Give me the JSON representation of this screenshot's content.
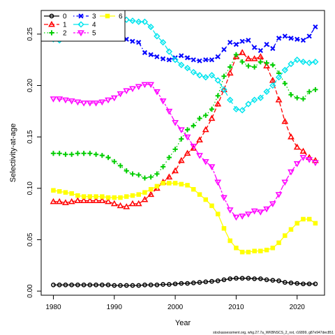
{
  "chart_data": {
    "type": "line",
    "title": "",
    "xlabel": "Year",
    "ylabel": "Selectivity-at-age",
    "xlim": [
      1978,
      2024.5
    ],
    "ylim": [
      -0.004,
      0.273
    ],
    "xticks": [
      1980,
      1990,
      2000,
      2010,
      2020
    ],
    "yticks": [
      0.0,
      0.05,
      0.1,
      0.15,
      0.2,
      0.25
    ],
    "ytick_labels": [
      "0.00",
      "0.05",
      "0.10",
      "0.15",
      "0.20",
      "0.25"
    ],
    "grid": false,
    "legend_position": "top-left",
    "x": [
      1980,
      1981,
      1982,
      1983,
      1984,
      1985,
      1986,
      1987,
      1988,
      1989,
      1990,
      1991,
      1992,
      1993,
      1994,
      1995,
      1996,
      1997,
      1998,
      1999,
      2000,
      2001,
      2002,
      2003,
      2004,
      2005,
      2006,
      2007,
      2008,
      2009,
      2010,
      2011,
      2012,
      2013,
      2014,
      2015,
      2016,
      2017,
      2018,
      2019,
      2020,
      2021,
      2022,
      2023
    ],
    "series": [
      {
        "name": "0",
        "color": "#000000",
        "marker": "circle",
        "line": "solid",
        "values": [
          0.006,
          0.006,
          0.006,
          0.006,
          0.006,
          0.006,
          0.006,
          0.006,
          0.006,
          0.006,
          0.0055,
          0.0055,
          0.0055,
          0.0055,
          0.0055,
          0.006,
          0.006,
          0.006,
          0.0065,
          0.0065,
          0.007,
          0.0075,
          0.0075,
          0.008,
          0.0085,
          0.009,
          0.0095,
          0.01,
          0.011,
          0.012,
          0.0125,
          0.0125,
          0.0125,
          0.012,
          0.012,
          0.011,
          0.0105,
          0.01,
          0.0085,
          0.008,
          0.0075,
          0.007,
          0.007,
          0.007
        ]
      },
      {
        "name": "1",
        "color": "#ff0000",
        "marker": "triangle-up",
        "line": "dash",
        "values": [
          0.087,
          0.087,
          0.086,
          0.087,
          0.088,
          0.088,
          0.088,
          0.088,
          0.088,
          0.087,
          0.085,
          0.083,
          0.082,
          0.085,
          0.085,
          0.089,
          0.094,
          0.1,
          0.106,
          0.111,
          0.117,
          0.127,
          0.134,
          0.139,
          0.147,
          0.157,
          0.168,
          0.182,
          0.196,
          0.212,
          0.228,
          0.232,
          0.226,
          0.226,
          0.228,
          0.219,
          0.205,
          0.186,
          0.165,
          0.15,
          0.14,
          0.136,
          0.13,
          0.127
        ]
      },
      {
        "name": "2",
        "color": "#00cd00",
        "marker": "plus",
        "line": "dot",
        "values": [
          0.134,
          0.134,
          0.133,
          0.133,
          0.134,
          0.134,
          0.134,
          0.133,
          0.132,
          0.13,
          0.126,
          0.122,
          0.117,
          0.114,
          0.113,
          0.11,
          0.111,
          0.114,
          0.121,
          0.13,
          0.138,
          0.148,
          0.157,
          0.161,
          0.168,
          0.171,
          0.177,
          0.19,
          0.209,
          0.218,
          0.23,
          0.223,
          0.219,
          0.218,
          0.223,
          0.222,
          0.22,
          0.212,
          0.202,
          0.191,
          0.188,
          0.187,
          0.194,
          0.196
        ]
      },
      {
        "name": "3",
        "color": "#0000ff",
        "marker": "x",
        "line": "dashdot",
        "values": [
          0.26,
          0.258,
          0.257,
          0.255,
          0.254,
          0.254,
          0.253,
          0.252,
          0.251,
          0.25,
          0.248,
          0.247,
          0.245,
          0.243,
          0.242,
          0.232,
          0.23,
          0.228,
          0.226,
          0.225,
          0.227,
          0.229,
          0.227,
          0.225,
          0.224,
          0.225,
          0.225,
          0.228,
          0.235,
          0.242,
          0.24,
          0.243,
          0.244,
          0.237,
          0.234,
          0.24,
          0.236,
          0.246,
          0.248,
          0.246,
          0.245,
          0.244,
          0.248,
          0.257
        ]
      },
      {
        "name": "4",
        "color": "#00e5ee",
        "marker": "diamond",
        "line": "longdash",
        "values": [
          0.245,
          0.244,
          0.246,
          0.248,
          0.251,
          0.254,
          0.256,
          0.258,
          0.259,
          0.261,
          0.263,
          0.264,
          0.264,
          0.263,
          0.262,
          0.262,
          0.257,
          0.248,
          0.242,
          0.233,
          0.225,
          0.22,
          0.217,
          0.213,
          0.21,
          0.208,
          0.21,
          0.205,
          0.196,
          0.186,
          0.177,
          0.176,
          0.182,
          0.186,
          0.188,
          0.194,
          0.2,
          0.208,
          0.215,
          0.221,
          0.225,
          0.223,
          0.222,
          0.223
        ]
      },
      {
        "name": "5",
        "color": "#ff00ff",
        "marker": "triangle-down",
        "line": "twodash",
        "values": [
          0.187,
          0.187,
          0.186,
          0.185,
          0.184,
          0.183,
          0.183,
          0.183,
          0.184,
          0.186,
          0.188,
          0.192,
          0.195,
          0.197,
          0.199,
          0.201,
          0.201,
          0.194,
          0.185,
          0.175,
          0.164,
          0.157,
          0.15,
          0.141,
          0.132,
          0.126,
          0.121,
          0.106,
          0.091,
          0.079,
          0.072,
          0.073,
          0.075,
          0.078,
          0.077,
          0.08,
          0.085,
          0.094,
          0.106,
          0.116,
          0.124,
          0.13,
          0.128,
          0.125
        ]
      },
      {
        "name": "6",
        "color": "#ffff00",
        "marker": "square",
        "line": "solid",
        "values": [
          0.098,
          0.097,
          0.096,
          0.095,
          0.093,
          0.092,
          0.092,
          0.092,
          0.092,
          0.091,
          0.091,
          0.091,
          0.092,
          0.093,
          0.094,
          0.096,
          0.099,
          0.102,
          0.105,
          0.105,
          0.105,
          0.104,
          0.103,
          0.099,
          0.094,
          0.089,
          0.083,
          0.075,
          0.061,
          0.049,
          0.042,
          0.038,
          0.038,
          0.039,
          0.039,
          0.04,
          0.042,
          0.047,
          0.054,
          0.06,
          0.066,
          0.07,
          0.07,
          0.066
        ]
      }
    ],
    "footnote": "stockassessment.org, whg.27.7a_WKBNSCS_2_nxt, r16899, g87e947dec851"
  }
}
